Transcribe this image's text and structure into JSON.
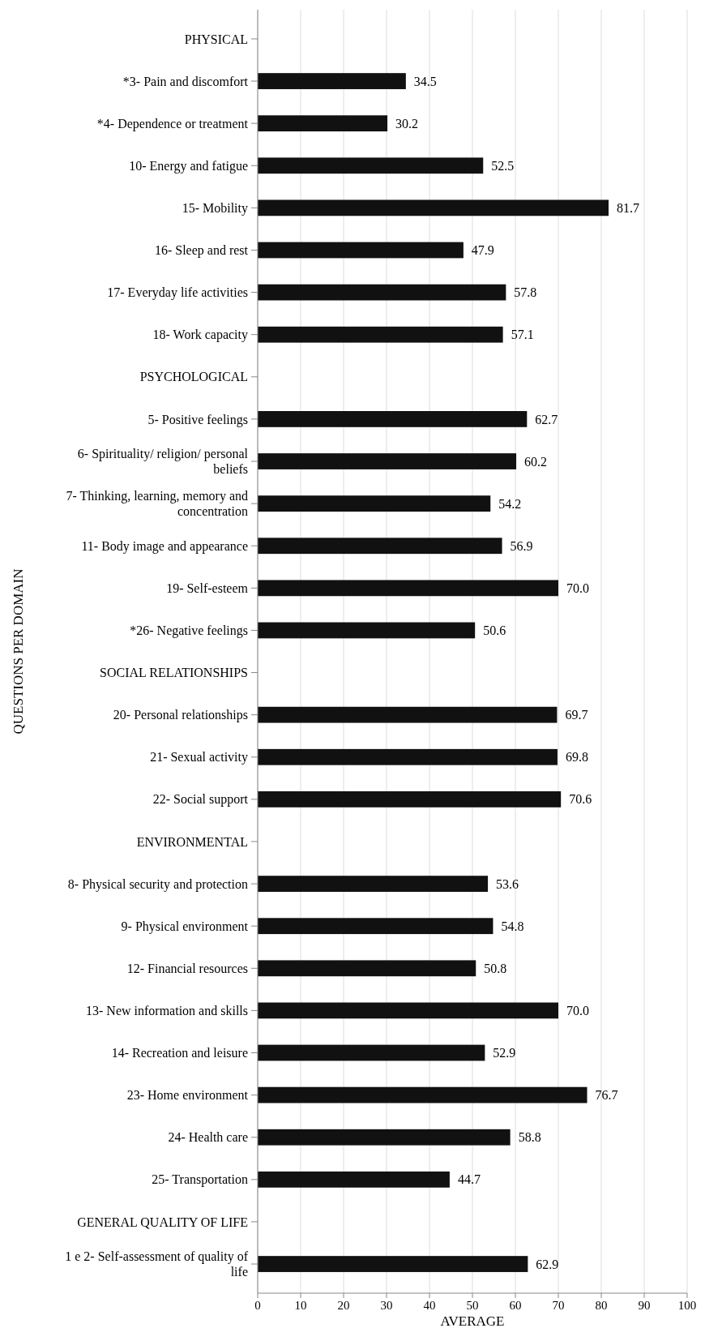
{
  "chart_data": {
    "type": "bar",
    "orientation": "horizontal",
    "xlabel": "AVERAGE",
    "ylabel": "QUESTIONS PER DOMAIN",
    "categories": [
      "PHYSICAL",
      "*3- Pain and discomfort",
      "*4- Dependence or treatment",
      "10- Energy and fatigue",
      "15- Mobility",
      "16- Sleep and rest",
      "17- Everyday life activities",
      "18- Work capacity",
      "PSYCHOLOGICAL",
      "5- Positive feelings",
      "6- Spirituality/ religion/ personal beliefs",
      "7- Thinking, learning, memory and concentration",
      "11- Body image and appearance",
      "19- Self-esteem",
      "*26- Negative feelings",
      "SOCIAL RELATIONSHIPS",
      "20- Personal relationships",
      "21- Sexual activity",
      "22- Social support",
      "ENVIRONMENTAL",
      "8- Physical security and protection",
      "9- Physical environment",
      "12- Financial resources",
      "13- New information and skills",
      "14- Recreation and leisure",
      "23- Home environment",
      "24- Health care",
      "25- Transportation",
      "GENERAL QUALITY OF LIFE",
      "1 e 2- Self-assessment of quality of life"
    ],
    "values": [
      null,
      34.5,
      30.2,
      52.5,
      81.7,
      47.9,
      57.8,
      57.1,
      null,
      62.7,
      60.2,
      54.2,
      56.9,
      70.0,
      50.6,
      null,
      69.7,
      69.8,
      70.6,
      null,
      53.6,
      54.8,
      50.8,
      70.0,
      52.9,
      76.7,
      58.8,
      44.7,
      null,
      62.9
    ],
    "value_labels": [
      null,
      "34.5",
      "30.2",
      "52.5",
      "81.7",
      "47.9",
      "57.8",
      "57.1",
      null,
      "62.7",
      "60.2",
      "54.2",
      "56.9",
      "70.0",
      "50.6",
      null,
      "69.7",
      "69.8",
      "70.6",
      null,
      "53.6",
      "54.8",
      "50.8",
      "70.0",
      "52.9",
      "76.7",
      "58.8",
      "44.7",
      null,
      "62.9"
    ],
    "color": "#111111",
    "xlim": [
      0,
      100
    ],
    "xticks": [
      0,
      10,
      20,
      30,
      40,
      50,
      60,
      70,
      80,
      90,
      100
    ],
    "grid": "x"
  }
}
